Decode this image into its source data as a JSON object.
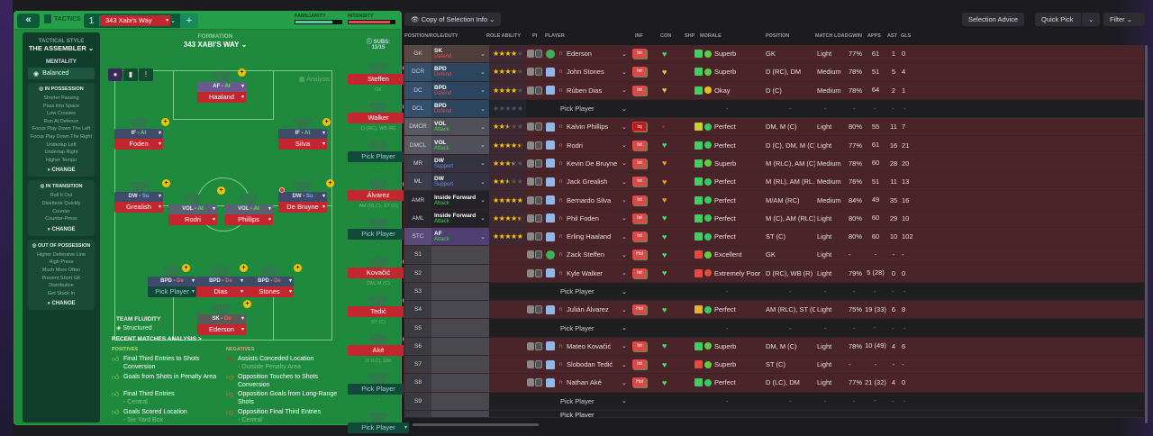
{
  "header": {
    "back_icon": "double-chevron-left",
    "tactics_label": "TACTICS",
    "tactic_slot": "1",
    "tactic_name": "343 Xabi's Way",
    "add_label": "+",
    "familiarity_label": "FAMILIARITY",
    "familiarity": 0.8,
    "intensity_label": "INTENSITY",
    "intensity": 0.9,
    "familiarity_color": "#4ecfa8",
    "intensity_color": "#e84850"
  },
  "sidebar": {
    "style_label": "TACTICAL STYLE",
    "style_value": "THE ASSEMBLER",
    "mentality_label": "MENTALITY",
    "mentality_value": "Balanced",
    "in_possession": {
      "title": "IN POSSESSION",
      "items": [
        "Shorter Passing",
        "Pass Into Space",
        "Low Crosses",
        "Run At Defence",
        "Focus Play Down The Left",
        "Focus Play Down The Right",
        "Underlap Left",
        "Underlap Right",
        "Higher Tempo"
      ],
      "change": "CHANGE"
    },
    "in_transition": {
      "title": "IN TRANSITION",
      "items": [
        "Roll It Out",
        "Distribute Quickly",
        "Counter",
        "Counter-Press"
      ],
      "change": "CHANGE"
    },
    "out_of_possession": {
      "title": "OUT OF POSSESSION",
      "items": [
        "Higher Defensive Line",
        "High Press",
        "Much More Often",
        "Prevent Short GK",
        "Distribution",
        "Get Stuck In"
      ],
      "change": "CHANGE"
    }
  },
  "formation": {
    "label": "FORMATION",
    "name": "343 XABI'S WAY",
    "subs_label": "SUBS:",
    "subs_count": "11/15",
    "analysis": "Analysis",
    "players": [
      {
        "role": "AF",
        "duty": "At",
        "name": "Haaland"
      },
      {
        "role": "IF",
        "duty": "At",
        "name": "Foden"
      },
      {
        "role": "IF",
        "duty": "At",
        "name": "Silva"
      },
      {
        "role": "DW",
        "duty": "Su",
        "name": "Grealish"
      },
      {
        "role": "VOL",
        "duty": "At",
        "name": "Rodri"
      },
      {
        "role": "VOL",
        "duty": "At",
        "name": "Phillips"
      },
      {
        "role": "DW",
        "duty": "Su",
        "name": "De Bruyne"
      },
      {
        "role": "BPD",
        "duty": "De",
        "name": "Pick Player"
      },
      {
        "role": "BPD",
        "duty": "De",
        "name": "Dias"
      },
      {
        "role": "BPD",
        "duty": "De",
        "name": "Stones"
      },
      {
        "role": "SK",
        "duty": "De",
        "name": "Ederson"
      }
    ],
    "subs": [
      {
        "name": "Steffen",
        "pos": "GK"
      },
      {
        "name": "Walker",
        "pos": "D (RC), WB (R)"
      },
      {
        "name": "Pick Player",
        "pos": "-"
      },
      {
        "name": "Álvarez",
        "pos": "AM (RLC), ST (C)"
      },
      {
        "name": "Pick Player",
        "pos": "-"
      },
      {
        "name": "Kovačić",
        "pos": "DM, M (C)"
      },
      {
        "name": "Tedić",
        "pos": "ST (C)"
      },
      {
        "name": "Aké",
        "pos": "D (LC), DM"
      },
      {
        "name": "Pick Player",
        "pos": "-"
      },
      {
        "name": "Pick Player",
        "pos": ""
      }
    ],
    "fluidity_label": "TEAM FLUIDITY",
    "fluidity_value": "Structured"
  },
  "analysis": {
    "title": "RECENT MATCHES ANALYSIS >",
    "positives_label": "POSITIVES",
    "negatives_label": "NEGATIVES",
    "positives": [
      {
        "text": "Final Third Entries to Shots Conversion",
        "detail": ""
      },
      {
        "text": "Goals from Shots in Penalty Area",
        "detail": ""
      },
      {
        "text": "Final Third Entries",
        "detail": "- Central"
      },
      {
        "text": "Goals Scored Location",
        "detail": "- Six Yard Box"
      }
    ],
    "negatives": [
      {
        "text": "Assists Conceded Location",
        "detail": "- Outside Penalty Area"
      },
      {
        "text": "Opposition Touches to Shots Conversion",
        "detail": ""
      },
      {
        "text": "Opposition Goals from Long-Range Shots",
        "detail": ""
      },
      {
        "text": "Opposition Final Third Entries",
        "detail": "- Central"
      }
    ]
  },
  "toolbar": {
    "view_label": "Copy of Selection Info",
    "selection_advice": "Selection Advice",
    "quick_pick": "Quick Pick",
    "filter": "Filter"
  },
  "table": {
    "headers": {
      "pos": "POSITION/ROLE/DUTY",
      "ability": "ROLE ABILITY",
      "pi": "PI",
      "player": "PLAYER",
      "inf": "INF",
      "con": "CON",
      "ship": "SHP",
      "morale": "MORALE",
      "position": "POSITION",
      "load": "MATCH LOAD",
      "gwin": "GWIN",
      "apps": "APPS",
      "ast": "AST",
      "gls": "GLS"
    },
    "pick_player": "Pick Player",
    "rows": [
      {
        "pos": "GK",
        "group": "gk",
        "role": "SK",
        "duty": "Defend",
        "stars": 4,
        "player": "Ederson",
        "gk": true,
        "inf": "Int",
        "con": "#3ee07a",
        "ship": "#3ed060",
        "morale": "Superb",
        "mc": "#5ad040",
        "position": "GK",
        "load": "Light",
        "gwin": "77%",
        "apps": "61",
        "ast": "1",
        "gls": "0"
      },
      {
        "pos": "DCR",
        "group": "d",
        "role": "BPD",
        "duty": "Defend",
        "stars": 4,
        "player": "John Stones",
        "inf": "Int",
        "con": "#e8d040",
        "ship": "#3ed060",
        "morale": "Superb",
        "mc": "#5ad040",
        "position": "D (RC), DM",
        "load": "Medium",
        "gwin": "78%",
        "apps": "51",
        "ast": "5",
        "gls": "4"
      },
      {
        "pos": "DC",
        "group": "d",
        "role": "BPD",
        "duty": "Defend",
        "stars": 4,
        "player": "Rúben Dias",
        "inf": "Int",
        "con": "#e8d040",
        "ship": "#3ed060",
        "morale": "Okay",
        "mc": "#e8c020",
        "position": "D (C)",
        "load": "Medium",
        "gwin": "78%",
        "apps": "64",
        "ast": "2",
        "gls": "1"
      },
      {
        "pos": "DCL",
        "group": "d",
        "role": "BPD",
        "duty": "Defend",
        "stars": 0,
        "player": null
      },
      {
        "pos": "DMCR",
        "group": "dm",
        "role": "VOL",
        "duty": "Attack",
        "stars": 2.5,
        "player": "Kalvin Phillips",
        "inf": "Inj",
        "con": "#c02830",
        "ship": "#c8d030",
        "morale": "Perfect",
        "mc": "#30d060",
        "position": "DM, M (C)",
        "load": "Light",
        "gwin": "80%",
        "apps": "55",
        "ast": "11",
        "gls": "7"
      },
      {
        "pos": "DMCL",
        "group": "dm",
        "role": "VOL",
        "duty": "Attack",
        "stars": 4.5,
        "player": "Rodri",
        "inf": "Int",
        "con": "#3ee07a",
        "ship": "#3ed060",
        "morale": "Perfect",
        "mc": "#30d060",
        "position": "D (C), DM, M (C)",
        "load": "Light",
        "gwin": "77%",
        "apps": "61",
        "ast": "16",
        "gls": "21"
      },
      {
        "pos": "MR",
        "group": "m",
        "role": "DW",
        "duty": "Support",
        "stars": 3.5,
        "player": "Kevin De Bruyne",
        "inf": "Int",
        "con": "#e8a030",
        "ship": "#3ed060",
        "morale": "Superb",
        "mc": "#5ad040",
        "position": "M (RLC), AM (C)",
        "load": "Medium",
        "gwin": "78%",
        "apps": "60",
        "ast": "28",
        "gls": "20"
      },
      {
        "pos": "ML",
        "group": "m",
        "role": "DW",
        "duty": "Support",
        "stars": 2.5,
        "player": "Jack Grealish",
        "inf": "Int",
        "con": "#e8a030",
        "ship": "#3ed060",
        "morale": "Perfect",
        "mc": "#30d060",
        "position": "M (RL), AM (RL...",
        "load": "Medium",
        "gwin": "76%",
        "apps": "51",
        "ast": "11",
        "gls": "13"
      },
      {
        "pos": "AMR",
        "group": "am",
        "role": "Inside Forward",
        "duty": "Attack",
        "stars": 5,
        "player": "Bernardo Silva",
        "inf": "Int",
        "con": "#e8a030",
        "ship": "#3ed060",
        "morale": "Perfect",
        "mc": "#30d060",
        "position": "M/AM (RC)",
        "load": "Medium",
        "gwin": "84%",
        "apps": "49",
        "ast": "35",
        "gls": "16"
      },
      {
        "pos": "AML",
        "group": "am",
        "role": "Inside Forward",
        "duty": "Attack",
        "stars": 4.5,
        "player": "Phil Foden",
        "inf": "Int",
        "con": "#3ee07a",
        "ship": "#3ed060",
        "morale": "Perfect",
        "mc": "#30d060",
        "position": "M (C), AM (RLC)",
        "load": "Light",
        "gwin": "80%",
        "apps": "60",
        "ast": "29",
        "gls": "10"
      },
      {
        "pos": "STC",
        "group": "st",
        "role": "AF",
        "duty": "Attack",
        "stars": 5,
        "player": "Erling Haaland",
        "inf": "Int",
        "con": "#3ee07a",
        "ship": "#3ed060",
        "morale": "Perfect",
        "mc": "#30d060",
        "position": "ST (C)",
        "load": "Light",
        "gwin": "80%",
        "apps": "60",
        "ast": "10",
        "gls": "102"
      },
      {
        "pos": "S1",
        "group": "s",
        "player": "Zack Steffen",
        "gk": true,
        "inf": "Hol",
        "con": "#3ee07a",
        "ship": "#e84840",
        "morale": "Excellent",
        "mc": "#5ad040",
        "position": "GK",
        "load": "Light",
        "gwin": "-",
        "apps": "-",
        "ast": "-",
        "gls": "-"
      },
      {
        "pos": "S2",
        "group": "s",
        "player": "Kyle Walker",
        "inf": "Int",
        "con": "#3ee07a",
        "ship": "#e84840",
        "morale": "Extremely Poor",
        "mc": "#e84840",
        "position": "D (RC), WB (R)",
        "load": "Light",
        "gwin": "79%",
        "apps": "5 (28)",
        "ast": "0",
        "gls": "0"
      },
      {
        "pos": "S3",
        "group": "s",
        "player": null
      },
      {
        "pos": "S4",
        "group": "s",
        "player": "Julián Álvarez",
        "inf": "Hol",
        "con": "#3ee07a",
        "ship": "#e8b030",
        "morale": "Perfect",
        "mc": "#30d060",
        "position": "AM (RLC), ST (C)",
        "load": "Light",
        "gwin": "75%",
        "apps": "19 (33)",
        "ast": "6",
        "gls": "8"
      },
      {
        "pos": "S5",
        "group": "s",
        "player": null
      },
      {
        "pos": "S6",
        "group": "s",
        "player": "Mateo Kovačić",
        "inf": "Int",
        "con": "#3ee07a",
        "ship": "#3ed060",
        "morale": "Superb",
        "mc": "#5ad040",
        "position": "DM, M (C)",
        "load": "Light",
        "gwin": "78%",
        "apps": "10 (49)",
        "ast": "4",
        "gls": "6"
      },
      {
        "pos": "S7",
        "group": "s",
        "player": "Slobodan Tedić",
        "inf": "Int",
        "con": "#3ee07a",
        "ship": "#e84840",
        "morale": "Superb",
        "mc": "#5ad040",
        "position": "ST (C)",
        "load": "Light",
        "gwin": "-",
        "apps": "-",
        "ast": "-",
        "gls": "-"
      },
      {
        "pos": "S8",
        "group": "s",
        "player": "Nathan Aké",
        "inf": "Hol",
        "con": "#3ee07a",
        "ship": "#3ed060",
        "morale": "Perfect",
        "mc": "#30d060",
        "position": "D (LC), DM",
        "load": "Light",
        "gwin": "77%",
        "apps": "21 (32)",
        "ast": "4",
        "gls": "0"
      },
      {
        "pos": "S9",
        "group": "s",
        "player": null
      }
    ]
  }
}
